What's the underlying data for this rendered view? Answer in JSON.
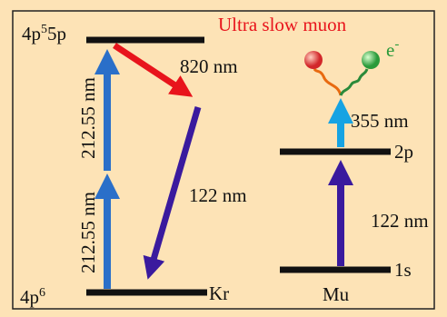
{
  "kr": {
    "upper_level": {
      "base": "4p",
      "sup": "5",
      "rest": "5p"
    },
    "lower_level": {
      "base": "4p",
      "sup": "6"
    },
    "name": "Kr",
    "transitions": [
      "212.55 nm",
      "212.55 nm",
      "820 nm",
      "122 nm"
    ]
  },
  "mu": {
    "title": "Ultra slow muon",
    "electron": {
      "base": "e",
      "sup": "-"
    },
    "levels": [
      "2p",
      "1s"
    ],
    "name": "Mu",
    "transitions": [
      "355 nm",
      "122 nm"
    ]
  }
}
